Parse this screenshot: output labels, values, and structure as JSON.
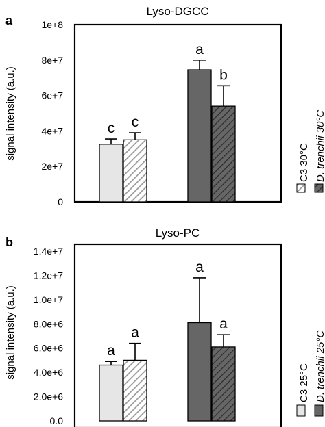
{
  "figure": {
    "panels": [
      {
        "letter": "a",
        "title": "Lyso-DGCC",
        "ylabel": "signal intensity (a.u.)",
        "yticks": [
          "0",
          "2e+7",
          "4e+7",
          "6e+7",
          "8e+7",
          "1e+8"
        ],
        "legend": [
          {
            "label": "C3 30°C",
            "italic": false
          },
          {
            "label": "D. trenchii 30°C",
            "italic": true
          }
        ]
      },
      {
        "letter": "b",
        "title": "Lyso-PC",
        "ylabel": "signal intensity (a.u.)",
        "yticks": [
          "0.0",
          "2.0e+6",
          "4.0e+6",
          "6.0e+6",
          "8.0e+6",
          "1.0e+7",
          "1.2e+7",
          "1.4e+7"
        ],
        "legend": [
          {
            "label": "C3 25°C",
            "italic": false
          },
          {
            "label": "D. trenchii 25°C",
            "italic": true
          }
        ]
      }
    ]
  },
  "colors": {
    "light_fill": "#e6e6e6",
    "dark_fill": "#666666",
    "axis": "#000000"
  },
  "chart_data": [
    {
      "type": "bar",
      "title": "Lyso-DGCC",
      "xlabel": "",
      "ylabel": "signal intensity (a.u.)",
      "ylim": [
        0,
        100000000
      ],
      "grid": false,
      "legend_position": "right (rotated)",
      "series": [
        {
          "name": "C3 30°C",
          "bars": [
            {
              "value": 32500000,
              "error": 3000000,
              "letter": "c",
              "pattern": "solid",
              "fill": "#e6e6e6"
            },
            {
              "value": 35000000,
              "error": 4000000,
              "letter": "c",
              "pattern": "hatched",
              "fill": "#e6e6e6"
            }
          ]
        },
        {
          "name": "D. trenchii 30°C",
          "bars": [
            {
              "value": 74500000,
              "error": 5500000,
              "letter": "a",
              "pattern": "solid",
              "fill": "#666666"
            },
            {
              "value": 54000000,
              "error": 11500000,
              "letter": "b",
              "pattern": "hatched",
              "fill": "#666666"
            }
          ]
        }
      ]
    },
    {
      "type": "bar",
      "title": "Lyso-PC",
      "xlabel": "",
      "ylabel": "signal intensity (a.u.)",
      "ylim": [
        0,
        14000000
      ],
      "grid": false,
      "legend_position": "right (rotated)",
      "series": [
        {
          "name": "C3 25°C",
          "bars": [
            {
              "value": 4600000,
              "error": 300000,
              "letter": "a",
              "pattern": "solid",
              "fill": "#e6e6e6"
            },
            {
              "value": 5000000,
              "error": 1400000,
              "letter": "a",
              "pattern": "hatched",
              "fill": "#e6e6e6"
            }
          ]
        },
        {
          "name": "D. trenchii 25°C",
          "bars": [
            {
              "value": 8100000,
              "error": 3700000,
              "letter": "a",
              "pattern": "solid",
              "fill": "#666666"
            },
            {
              "value": 6100000,
              "error": 1000000,
              "letter": "a",
              "pattern": "hatched",
              "fill": "#666666"
            }
          ]
        }
      ]
    }
  ]
}
